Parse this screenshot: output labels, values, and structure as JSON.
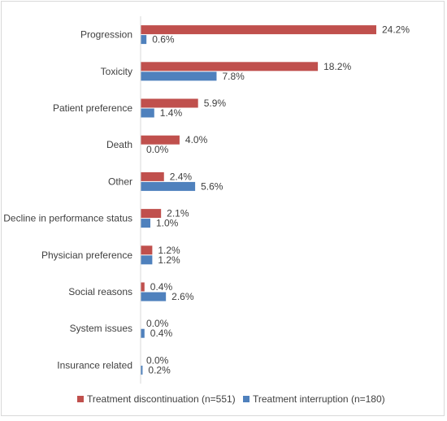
{
  "chart_data": {
    "type": "bar",
    "orientation": "horizontal",
    "categories": [
      "Progression",
      "Toxicity",
      "Patient preference",
      "Death",
      "Other",
      "Decline in performance status",
      "Physician preference",
      "Social reasons",
      "System issues",
      "Insurance related"
    ],
    "series": [
      {
        "name": "Treatment discontinuation (n=551)",
        "color": "#c0504d",
        "values": [
          24.2,
          18.2,
          5.9,
          4.0,
          2.4,
          2.1,
          1.2,
          0.4,
          0.0,
          0.0
        ],
        "labels": [
          "24.2%",
          "18.2%",
          "5.9%",
          "4.0%",
          "2.4%",
          "2.1%",
          "1.2%",
          "0.4%",
          "0.0%",
          "0.0%"
        ]
      },
      {
        "name": "Treatment interruption (n=180)",
        "color": "#4f81bd",
        "values": [
          0.6,
          7.8,
          1.4,
          0.0,
          5.6,
          1.0,
          1.2,
          2.6,
          0.4,
          0.2
        ],
        "labels": [
          "0.6%",
          "7.8%",
          "1.4%",
          "0.0%",
          "5.6%",
          "1.0%",
          "1.2%",
          "2.6%",
          "0.4%",
          "0.2%"
        ]
      }
    ],
    "xlim": [
      0,
      26
    ],
    "grid": false,
    "legend_position": "bottom"
  }
}
